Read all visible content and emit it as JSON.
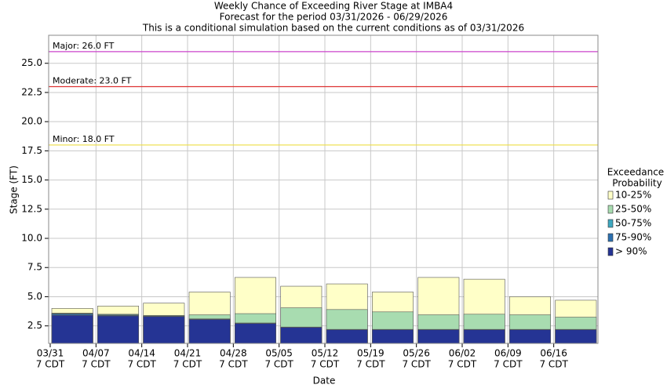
{
  "chart_data": {
    "type": "bar",
    "layered": true,
    "title": "Weekly Chance of Exceeding River Stage at IMBA4",
    "subtitle": "Forecast for the period 03/31/2026 - 06/29/2026",
    "note": "This is a conditional simulation based on the current conditions as of 03/31/2026",
    "y_label": "Stage (FT)",
    "x_label": "Date",
    "x_tick_time": "7 CDT",
    "categories": [
      "03/31",
      "04/07",
      "04/14",
      "04/21",
      "04/28",
      "05/05",
      "05/12",
      "05/19",
      "05/26",
      "06/02",
      "06/09",
      "06/16"
    ],
    "legend_title": [
      "Exceedance",
      "Probability"
    ],
    "series": [
      {
        "name": "10-25%",
        "color": "#ffffc8",
        "values": [
          4.0,
          4.2,
          4.45,
          5.4,
          6.65,
          5.9,
          6.1,
          5.4,
          6.65,
          6.5,
          5.0,
          4.7
        ]
      },
      {
        "name": "25-50%",
        "color": "#a8dcb0",
        "values": [
          3.6,
          3.5,
          3.4,
          3.45,
          3.55,
          4.05,
          3.9,
          3.7,
          3.45,
          3.5,
          3.45,
          3.25
        ]
      },
      {
        "name": "50-75%",
        "color": "#3ea8c0",
        "values": [
          3.55,
          3.45,
          3.35,
          3.1,
          2.75,
          2.4,
          2.2,
          2.2,
          2.2,
          2.2,
          2.2,
          2.2
        ]
      },
      {
        "name": "75-90%",
        "color": "#2c70b0",
        "values": [
          3.5,
          3.4,
          3.32,
          3.07,
          2.72,
          2.38,
          2.18,
          2.18,
          2.18,
          2.18,
          2.18,
          2.18
        ]
      },
      {
        "name": "> 90%",
        "color": "#253494",
        "values": [
          3.4,
          3.35,
          3.3,
          3.05,
          2.7,
          2.37,
          2.17,
          2.17,
          2.17,
          2.17,
          2.17,
          2.17
        ]
      }
    ],
    "thresholds": [
      {
        "label": "Major: 26.0 FT",
        "value": 26.0,
        "color": "#cc44cc"
      },
      {
        "label": "Moderate: 23.0 FT",
        "value": 23.0,
        "color": "#dd3333"
      },
      {
        "label": "Minor: 18.0 FT",
        "value": 18.0,
        "color": "#eedd44"
      }
    ],
    "ylim": [
      1.0,
      27.4
    ],
    "yticks": [
      2.5,
      {
        "value": 5,
        "label": "5.0"
      },
      7.5,
      {
        "value": 10,
        "label": "10.0"
      },
      12.5,
      {
        "value": 15,
        "label": "15.0"
      },
      17.5,
      {
        "value": 20,
        "label": "20.0"
      },
      22.5,
      {
        "value": 25,
        "label": "25.0"
      }
    ],
    "grid": true
  }
}
